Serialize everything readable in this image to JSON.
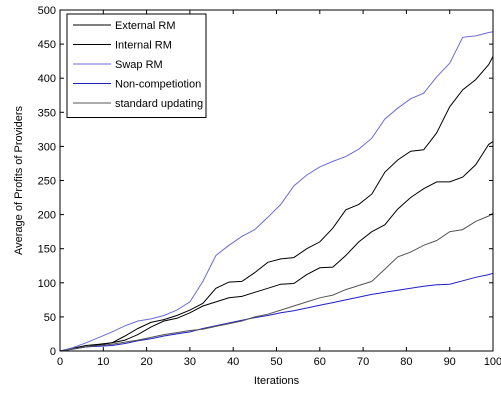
{
  "chart_data": {
    "type": "line",
    "title": "",
    "xlabel": "Iterations",
    "ylabel": "Average of Profits of Providers",
    "xlim": [
      0,
      100
    ],
    "ylim": [
      0,
      500
    ],
    "xticks": [
      0,
      10,
      20,
      30,
      40,
      50,
      60,
      70,
      80,
      90,
      100
    ],
    "yticks": [
      0,
      50,
      100,
      150,
      200,
      250,
      300,
      350,
      400,
      450,
      500
    ],
    "grid": false,
    "legend_position": "top-left",
    "series": [
      {
        "name": "External RM",
        "color": "#000000",
        "x": [
          0,
          3,
          6,
          9,
          12,
          15,
          18,
          21,
          24,
          27,
          30,
          33,
          36,
          39,
          42,
          45,
          48,
          51,
          54,
          57,
          60,
          63,
          66,
          69,
          72,
          75,
          78,
          81,
          84,
          87,
          90,
          93,
          96,
          99,
          100
        ],
        "y": [
          0,
          3,
          6,
          9,
          12,
          16,
          24,
          35,
          44,
          48,
          56,
          66,
          72,
          78,
          80,
          86,
          92,
          98,
          99,
          112,
          122,
          123,
          140,
          160,
          175,
          185,
          208,
          225,
          238,
          248,
          248,
          255,
          273,
          303,
          307
        ]
      },
      {
        "name": "Internal RM",
        "color": "#000000",
        "x": [
          0,
          3,
          6,
          9,
          12,
          15,
          18,
          21,
          24,
          27,
          30,
          33,
          36,
          39,
          42,
          45,
          48,
          51,
          54,
          57,
          60,
          63,
          66,
          69,
          72,
          75,
          78,
          81,
          84,
          87,
          90,
          93,
          96,
          99,
          100
        ],
        "y": [
          0,
          4,
          8,
          10,
          12,
          22,
          33,
          42,
          46,
          52,
          60,
          70,
          92,
          101,
          102,
          115,
          130,
          135,
          137,
          150,
          160,
          180,
          207,
          215,
          230,
          262,
          280,
          293,
          295,
          320,
          358,
          383,
          398,
          420,
          432
        ]
      },
      {
        "name": "Swap RM",
        "color": "#6b6bd6",
        "x": [
          0,
          3,
          6,
          9,
          12,
          15,
          18,
          21,
          24,
          27,
          30,
          33,
          36,
          39,
          42,
          45,
          48,
          51,
          54,
          57,
          60,
          63,
          66,
          69,
          72,
          75,
          78,
          81,
          84,
          87,
          90,
          93,
          96,
          99,
          100
        ],
        "y": [
          0,
          5,
          12,
          20,
          28,
          37,
          44,
          47,
          52,
          60,
          72,
          102,
          140,
          155,
          168,
          178,
          196,
          215,
          242,
          258,
          270,
          278,
          285,
          296,
          312,
          340,
          356,
          370,
          378,
          402,
          422,
          460,
          462,
          467,
          468
        ]
      },
      {
        "name": "Non-competiotion",
        "color": "#1e1ec8",
        "x": [
          0,
          3,
          6,
          9,
          12,
          15,
          18,
          21,
          24,
          27,
          30,
          33,
          36,
          39,
          42,
          45,
          48,
          51,
          54,
          57,
          60,
          63,
          66,
          69,
          72,
          75,
          78,
          81,
          84,
          87,
          90,
          93,
          96,
          99,
          100
        ],
        "y": [
          0,
          3,
          6,
          7,
          8,
          11,
          15,
          18,
          22,
          25,
          28,
          33,
          37,
          41,
          45,
          49,
          52,
          56,
          59,
          63,
          67,
          71,
          75,
          79,
          83,
          86,
          89,
          92,
          95,
          97,
          98,
          103,
          108,
          112,
          114
        ]
      },
      {
        "name": "standard updating",
        "color": "#555555",
        "x": [
          0,
          3,
          6,
          9,
          12,
          15,
          18,
          21,
          24,
          27,
          30,
          33,
          36,
          39,
          42,
          45,
          48,
          51,
          54,
          57,
          60,
          63,
          66,
          69,
          72,
          75,
          78,
          81,
          84,
          87,
          90,
          93,
          96,
          99,
          100
        ],
        "y": [
          0,
          3,
          6,
          8,
          10,
          13,
          16,
          20,
          24,
          27,
          30,
          32,
          36,
          40,
          44,
          50,
          54,
          60,
          66,
          72,
          78,
          82,
          90,
          96,
          102,
          120,
          138,
          145,
          155,
          162,
          175,
          178,
          190,
          198,
          202
        ]
      }
    ]
  }
}
